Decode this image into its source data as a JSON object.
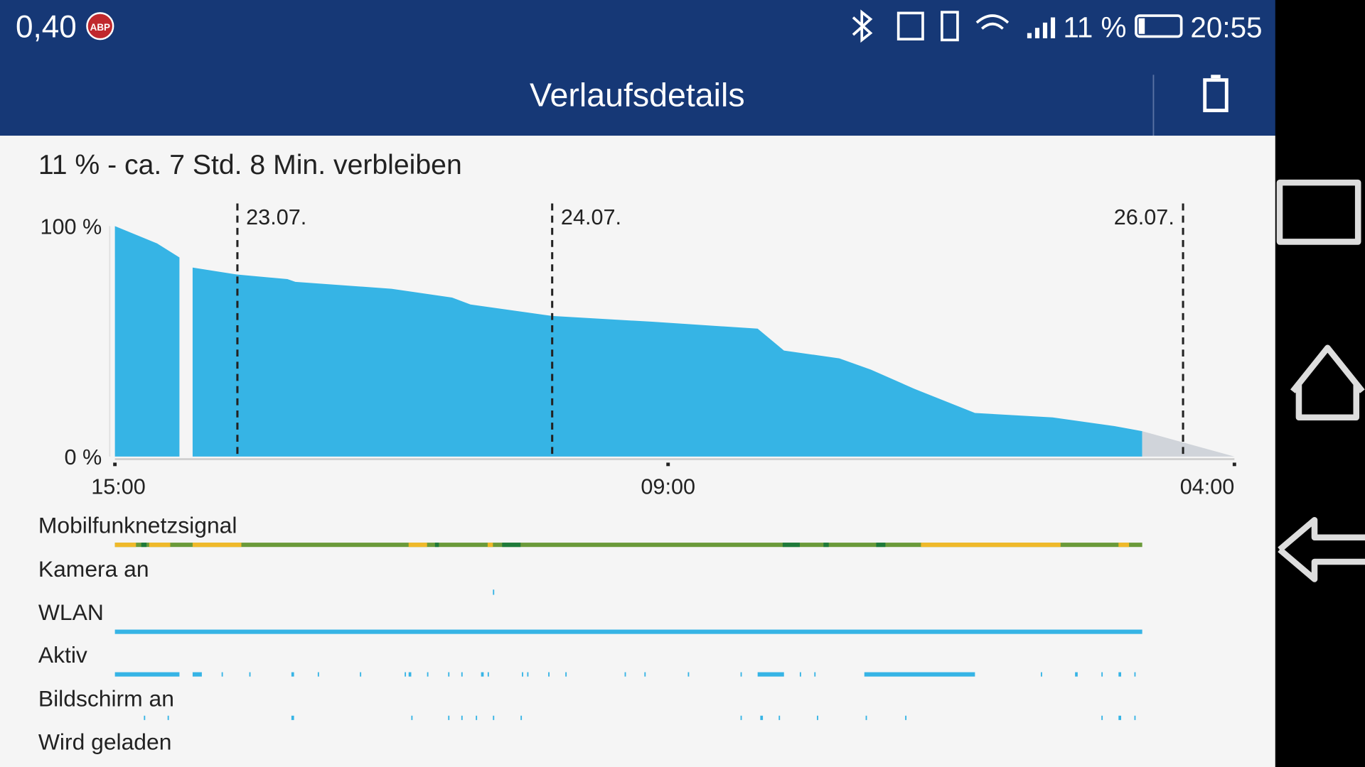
{
  "status_bar": {
    "speed": "0,40",
    "adblock": "ABP",
    "battery": "11 %",
    "time": "20:55"
  },
  "header": {
    "title": "Verlaufsdetails"
  },
  "summary": "11 % - ca. 7 Std. 8 Min. verbleiben",
  "chart_data": {
    "type": "area",
    "color": "#36b4e5",
    "x": [
      0,
      3.2,
      4.9,
      null,
      5.9,
      9.25,
      13.1,
      13.7,
      21,
      25.6,
      27,
      33.2,
      40.8,
      48.8,
      50.8,
      55,
      57.4,
      60.7,
      65.3,
      71.2,
      75.9,
      78
    ],
    "values": [
      100,
      92.5,
      86.4,
      null,
      82,
      79,
      77,
      75.8,
      72.8,
      69,
      66,
      61,
      58.5,
      55.5,
      46,
      42.6,
      37.7,
      29.4,
      18.9,
      17,
      13.2,
      11
    ],
    "forecast": {
      "x": [
        78,
        85
      ],
      "values": [
        11,
        0
      ],
      "color": "#d0d4da"
    },
    "xlim": [
      0,
      85
    ],
    "ylim": [
      0,
      100
    ],
    "xticks": [
      {
        "value": 0,
        "label": "15:00"
      },
      {
        "value": 42,
        "label": "09:00"
      },
      {
        "value": 85,
        "label": "04:00"
      }
    ],
    "yticks": [
      {
        "value": 0,
        "label": "0 %"
      },
      {
        "value": 100,
        "label": "100 %"
      }
    ],
    "date_markers": [
      {
        "value": 9.3,
        "label": "23.07."
      },
      {
        "value": 33.2,
        "label": "24.07."
      },
      {
        "value": 81.1,
        "label": "26.07."
      }
    ]
  },
  "rows": [
    {
      "label": "Mobilfunknetzsignal",
      "color": "#6a9a3a",
      "segments": [
        [
          0,
          78
        ]
      ],
      "overlays": [
        {
          "color": "#f0b92a",
          "segments": [
            [
              0,
              1.6
            ],
            [
              2.6,
              4.2
            ],
            [
              5.9,
              9.6
            ],
            [
              22.3,
              23.7
            ],
            [
              28.3,
              28.7
            ],
            [
              61.2,
              71.8
            ],
            [
              76.2,
              77
            ]
          ]
        },
        {
          "color": "#1e7a3a",
          "segments": [
            [
              2.0,
              2.4
            ],
            [
              24.3,
              24.6
            ],
            [
              29.4,
              30.8
            ],
            [
              50.7,
              52
            ],
            [
              53.8,
              54.2
            ],
            [
              57.8,
              58.5
            ]
          ]
        }
      ]
    },
    {
      "label": "Kamera an",
      "color": "#36b4e5",
      "thin": true,
      "segments": [
        [
          28.7,
          28.8
        ]
      ]
    },
    {
      "label": "WLAN",
      "color": "#36b4e5",
      "segments": [
        [
          0,
          78
        ]
      ]
    },
    {
      "label": "Aktiv",
      "color": "#36b4e5",
      "segments": [
        [
          0,
          4.9
        ],
        [
          5.9,
          6.6
        ],
        [
          8.1,
          8.2
        ],
        [
          10.2,
          10.3
        ],
        [
          13.4,
          13.6
        ],
        [
          15.4,
          15.5
        ],
        [
          18.6,
          18.7
        ],
        [
          22.0,
          22.1
        ],
        [
          22.3,
          22.5
        ],
        [
          23.7,
          23.8
        ],
        [
          25.3,
          25.4
        ],
        [
          26.3,
          26.4
        ],
        [
          27.8,
          28.0
        ],
        [
          28.3,
          28.4
        ],
        [
          30.9,
          31.0
        ],
        [
          31.3,
          31.4
        ],
        [
          32.9,
          33.0
        ],
        [
          34.2,
          34.3
        ],
        [
          38.7,
          38.8
        ],
        [
          40.2,
          40.3
        ],
        [
          43.5,
          43.6
        ],
        [
          47.5,
          47.6
        ],
        [
          48.8,
          50.8
        ],
        [
          52.0,
          52.1
        ],
        [
          53.1,
          53.2
        ],
        [
          56.9,
          65.3
        ],
        [
          70.3,
          70.4
        ],
        [
          72.9,
          73.1
        ],
        [
          74.9,
          75.0
        ],
        [
          76.2,
          76.4
        ],
        [
          77.4,
          77.5
        ]
      ]
    },
    {
      "label": "Bildschirm an",
      "color": "#36b4e5",
      "segments": [
        [
          2.2,
          2.3
        ],
        [
          4.0,
          4.1
        ],
        [
          13.4,
          13.6
        ],
        [
          22.5,
          22.6
        ],
        [
          25.3,
          25.4
        ],
        [
          26.3,
          26.4
        ],
        [
          27.4,
          27.5
        ],
        [
          28.7,
          28.8
        ],
        [
          30.8,
          30.9
        ],
        [
          47.5,
          47.6
        ],
        [
          49.0,
          49.2
        ],
        [
          50.4,
          50.5
        ],
        [
          53.3,
          53.4
        ],
        [
          57.0,
          57.1
        ],
        [
          60.0,
          60.1
        ],
        [
          74.9,
          75.0
        ],
        [
          76.2,
          76.4
        ],
        [
          77.4,
          77.5
        ]
      ]
    },
    {
      "label": "Wird geladen",
      "color": "#36b4e5",
      "segments": []
    }
  ]
}
